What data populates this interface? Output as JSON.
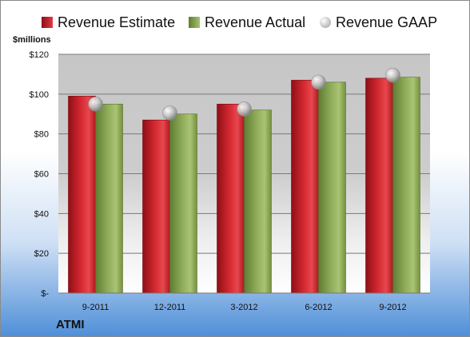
{
  "chart_data": {
    "type": "bar",
    "categories": [
      "9-2011",
      "12-2011",
      "3-2012",
      "6-2012",
      "9-2012"
    ],
    "series": [
      {
        "name": "Revenue Estimate",
        "values": [
          99,
          87,
          95,
          107,
          108
        ],
        "color": "#c8202a"
      },
      {
        "name": "Revenue Actual",
        "values": [
          95,
          90,
          92,
          106,
          108.5
        ],
        "color": "#8fac5a"
      },
      {
        "name": "Revenue GAAP",
        "values": [
          95,
          90.5,
          92.5,
          106,
          109.5
        ],
        "color": "#b8b8b8",
        "mark": "marker"
      }
    ],
    "ylabel": "$millions",
    "ylim": [
      0,
      120
    ],
    "yticks": [
      0,
      20,
      40,
      60,
      80,
      100,
      120
    ],
    "ytick_labels": [
      "$-",
      "$20",
      "$40",
      "$60",
      "$80",
      "$100",
      "$120"
    ],
    "grid": true,
    "legend": "top"
  },
  "company": "ATMI"
}
